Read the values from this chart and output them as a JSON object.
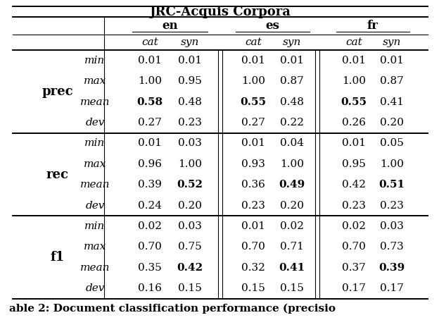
{
  "title": "JRC-Acquis Corpora",
  "caption": "able 2: Document classification performance (precisio",
  "col_groups": [
    "en",
    "es",
    "fr"
  ],
  "col_subheaders": [
    "cat",
    "syn"
  ],
  "row_groups": [
    "prec",
    "rec",
    "f1"
  ],
  "row_labels": [
    "min",
    "max",
    "mean",
    "dev"
  ],
  "data": {
    "prec": {
      "min": [
        0.01,
        0.01,
        0.01,
        0.01,
        0.01,
        0.01
      ],
      "max": [
        1.0,
        0.95,
        1.0,
        0.87,
        1.0,
        0.87
      ],
      "mean": [
        0.58,
        0.48,
        0.55,
        0.48,
        0.55,
        0.41
      ],
      "dev": [
        0.27,
        0.23,
        0.27,
        0.22,
        0.26,
        0.2
      ]
    },
    "rec": {
      "min": [
        0.01,
        0.03,
        0.01,
        0.04,
        0.01,
        0.05
      ],
      "max": [
        0.96,
        1.0,
        0.93,
        1.0,
        0.95,
        1.0
      ],
      "mean": [
        0.39,
        0.52,
        0.36,
        0.49,
        0.42,
        0.51
      ],
      "dev": [
        0.24,
        0.2,
        0.23,
        0.2,
        0.23,
        0.23
      ]
    },
    "f1": {
      "min": [
        0.02,
        0.03,
        0.01,
        0.02,
        0.02,
        0.03
      ],
      "max": [
        0.7,
        0.75,
        0.7,
        0.71,
        0.7,
        0.73
      ],
      "mean": [
        0.35,
        0.42,
        0.32,
        0.41,
        0.37,
        0.39
      ],
      "dev": [
        0.16,
        0.15,
        0.15,
        0.15,
        0.17,
        0.17
      ]
    }
  },
  "bold": {
    "prec": {
      "mean": [
        0,
        2,
        4
      ]
    },
    "rec": {
      "mean": [
        1,
        3,
        5
      ]
    },
    "f1": {
      "mean": [
        1,
        3,
        5
      ]
    }
  },
  "figwidth": 6.24,
  "figheight": 4.54,
  "dpi": 100
}
